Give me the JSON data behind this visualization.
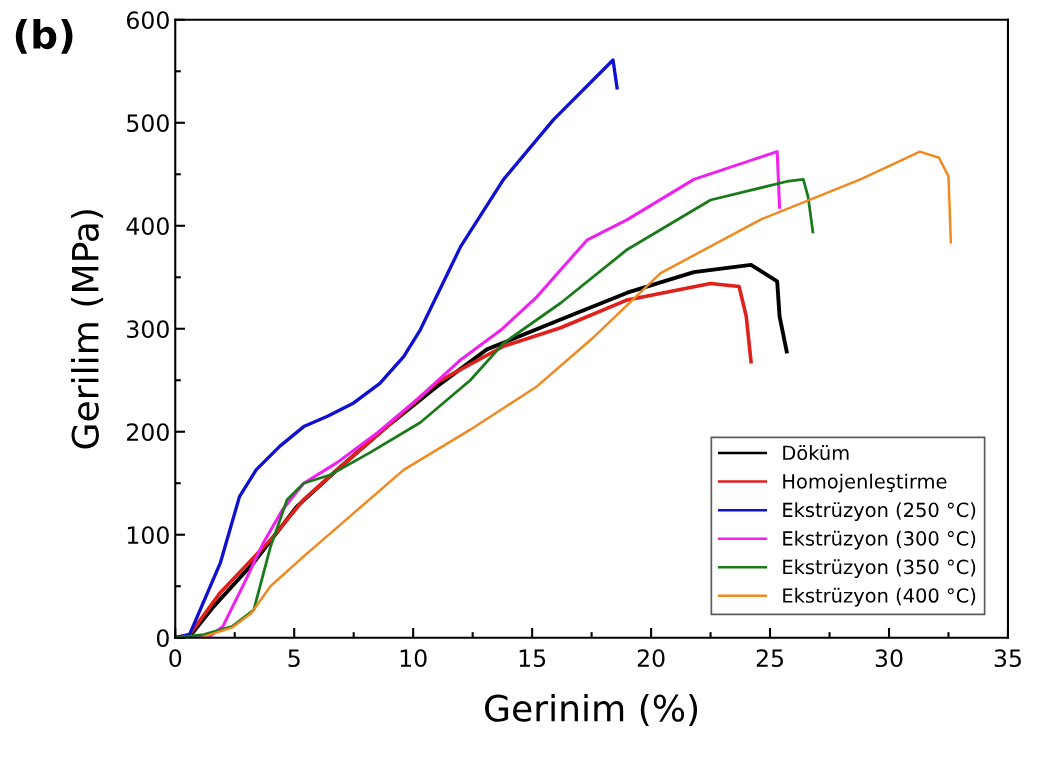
{
  "chart_data": {
    "type": "line",
    "title": "(b)",
    "xlabel": "Gerinim (%)",
    "ylabel": "Gerilim (MPa)",
    "xlim": [
      0,
      35
    ],
    "xticks": [
      0,
      5,
      10,
      15,
      20,
      25,
      30,
      35
    ],
    "ylim": [
      0,
      600
    ],
    "yticks": [
      0,
      100,
      200,
      300,
      400,
      500,
      600
    ],
    "grid": false,
    "legend": "bottom right",
    "marker": "none",
    "line_style": "solid",
    "series": [
      {
        "name": "Döküm",
        "color": "#000000",
        "x": [
          0,
          0.6,
          1.6,
          3.3,
          5.1,
          6.8,
          8.9,
          11,
          13.1,
          16.2,
          19,
          21.8,
          24.2,
          25.3,
          25.4,
          25.7
        ],
        "values": [
          0,
          1,
          30,
          73,
          127,
          163,
          205,
          244,
          280,
          309,
          335,
          355,
          362,
          346,
          312,
          278
        ]
      },
      {
        "name": "Homojenleştirme",
        "color": "#e0201b",
        "x": [
          0,
          0.6,
          1.9,
          4,
          5.4,
          6.8,
          8.9,
          11,
          13.8,
          16.2,
          19,
          22.5,
          23.7,
          24,
          24.2
        ],
        "values": [
          0,
          3,
          44,
          95,
          134,
          163,
          205,
          248,
          283,
          301,
          328,
          344,
          341,
          312,
          268
        ]
      },
      {
        "name": "Ekstrüzyon (250 °C)",
        "color": "#1010d0",
        "x": [
          0,
          0.6,
          1.9,
          2.7,
          3.4,
          4.4,
          5.4,
          6.4,
          7.5,
          8.6,
          9.6,
          10.3,
          12,
          13.8,
          15.9,
          18.4,
          18.57
        ],
        "values": [
          0,
          3,
          73,
          137,
          163,
          186,
          205,
          215,
          228,
          247,
          273,
          299,
          380,
          445,
          503,
          561,
          534
        ]
      },
      {
        "name": "Ekstrüzyon (300 °C)",
        "color": "#f020f0",
        "x": [
          0,
          1.5,
          2.0,
          2.9,
          3.7,
          4.5,
          5.4,
          6.8,
          8.5,
          10.3,
          12,
          13.7,
          15.2,
          17.3,
          19,
          21.8,
          25.3,
          25.4
        ],
        "values": [
          0,
          2,
          11,
          53,
          92,
          124,
          150,
          170,
          199,
          234,
          270,
          299,
          331,
          386,
          406,
          445,
          472,
          418
        ]
      },
      {
        "name": "Ekstrüzyon (350 °C)",
        "color": "#1a7a1a",
        "x": [
          0,
          1.2,
          2.4,
          3.3,
          4.0,
          4.7,
          5.4,
          6.5,
          8.2,
          10.3,
          12.4,
          13.8,
          16.2,
          19,
          22.5,
          25.7,
          26.4,
          26.6,
          26.8
        ],
        "values": [
          0,
          3,
          11,
          27,
          88,
          134,
          150,
          158,
          180,
          209,
          250,
          286,
          325,
          377,
          425,
          443,
          445,
          428,
          394
        ]
      },
      {
        "name": "Ekstrüzyon (400 °C)",
        "color": "#f08a20",
        "x": [
          1.2,
          2.4,
          3.2,
          4,
          5.4,
          7.5,
          9.6,
          12.4,
          15.2,
          17.5,
          20.4,
          24.6,
          28.8,
          31.3,
          32.1,
          32.5,
          32.6
        ],
        "values": [
          1,
          10,
          24,
          50,
          79,
          121,
          163,
          202,
          244,
          290,
          354,
          406,
          445,
          472,
          466,
          448,
          384
        ]
      }
    ]
  }
}
